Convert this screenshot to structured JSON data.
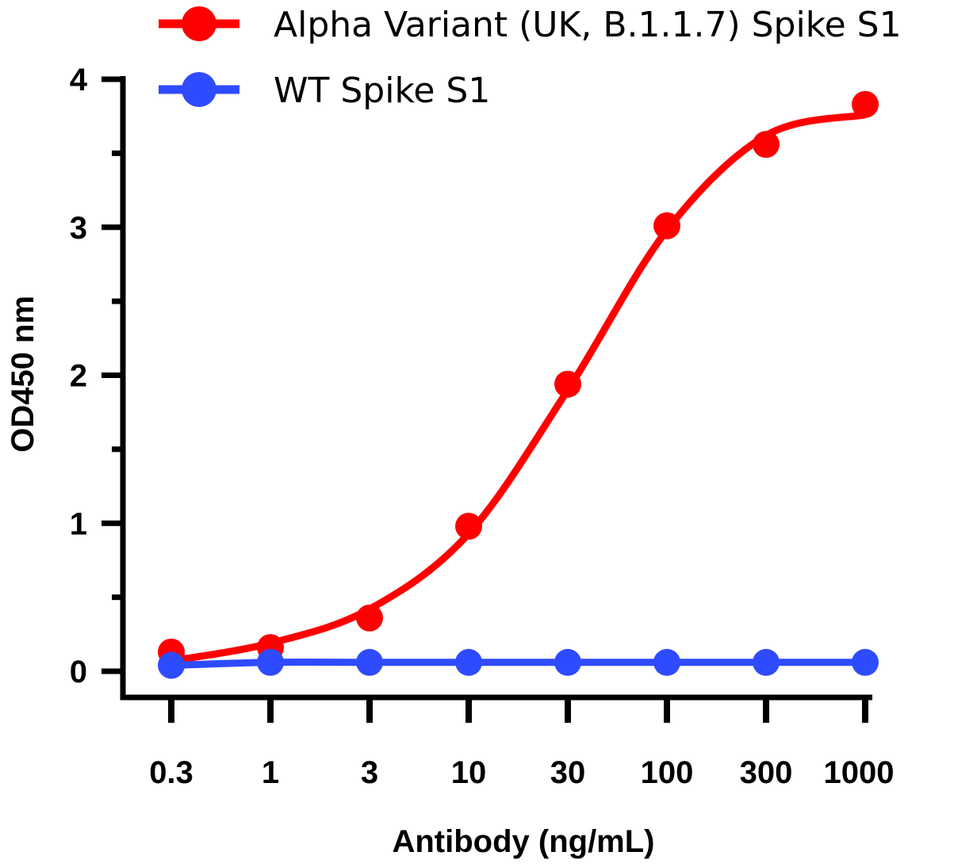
{
  "chart_data": {
    "type": "line",
    "title": "",
    "xlabel": "Antibody (ng/mL)",
    "ylabel": "OD450 nm",
    "categories": [
      "0.3",
      "1",
      "3",
      "10",
      "30",
      "100",
      "300",
      "1000"
    ],
    "x_scale": "log (evenly spaced dilution points)",
    "ylim": [
      0,
      4
    ],
    "yticks": [
      "0",
      "1",
      "2",
      "3",
      "4"
    ],
    "grid": false,
    "legend_position": "top",
    "series": [
      {
        "name": "Alpha Variant (UK, B.1.1.7) Spike S1",
        "color": "#ff0000",
        "marker": "circle",
        "fit_curve": true,
        "values": [
          0.13,
          0.16,
          0.36,
          0.98,
          1.94,
          3.01,
          3.56,
          3.83
        ]
      },
      {
        "name": "WT Spike S1",
        "color": "#2f4bff",
        "marker": "circle",
        "fit_curve": true,
        "values": [
          0.04,
          0.06,
          0.06,
          0.06,
          0.06,
          0.06,
          0.06,
          0.06
        ]
      }
    ]
  }
}
